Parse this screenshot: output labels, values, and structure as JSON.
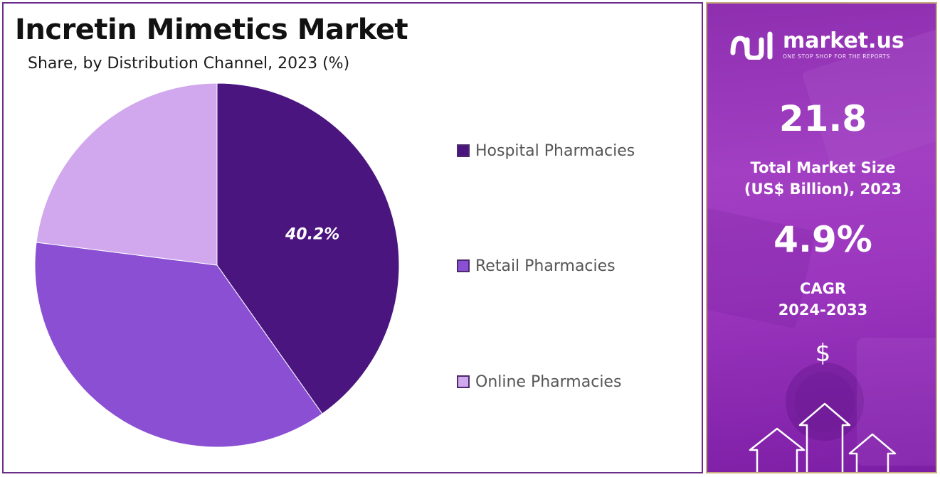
{
  "chart_data": {
    "type": "pie",
    "title": "Incretin Mimetics Market",
    "subtitle": "Share, by Distribution Channel, 2023 (%)",
    "labels": [
      "Hospital Pharmacies",
      "Retail Pharmacies",
      "Online Pharmacies"
    ],
    "values": [
      40.2,
      36.8,
      23.0
    ],
    "data_labels": [
      "40.2%",
      "",
      ""
    ],
    "colors": [
      "#4b1580",
      "#8a4fd3",
      "#d1a7ee"
    ],
    "legend_position": "right"
  },
  "sidebar": {
    "brand_name": "market.us",
    "tagline": "ONE STOP SHOP FOR THE REPORTS",
    "market_size_value": "21.8",
    "market_size_label_line1": "Total Market Size",
    "market_size_label_line2": "(US$ Billion), 2023",
    "cagr_value": "4.9%",
    "cagr_label_line1": "CAGR",
    "cagr_label_line2": "2024-2033",
    "currency_symbol": "$",
    "icons": [
      "market-us-logo-icon",
      "dollar-sign-icon",
      "up-arrow-icon"
    ]
  }
}
